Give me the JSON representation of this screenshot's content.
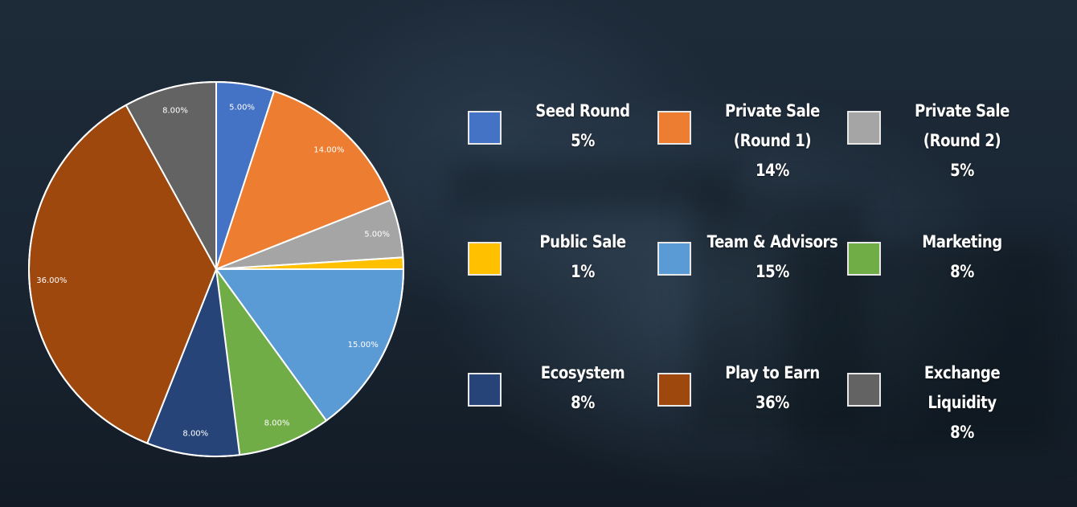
{
  "chart_data": {
    "type": "pie",
    "slices": [
      {
        "name": "Seed Round",
        "value": 5,
        "label": "5.00%",
        "color": "#4472C4"
      },
      {
        "name": "Private Sale (Round 1)",
        "value": 14,
        "label": "14.00%",
        "color": "#ED7D31"
      },
      {
        "name": "Private Sale (Round 2)",
        "value": 5,
        "label": "5.00%",
        "color": "#A5A5A5"
      },
      {
        "name": "Public Sale",
        "value": 1,
        "label": "",
        "color": "#FFC000"
      },
      {
        "name": "Team & Advisors",
        "value": 15,
        "label": "15.00%",
        "color": "#5B9BD5"
      },
      {
        "name": "Marketing",
        "value": 8,
        "label": "8.00%",
        "color": "#70AD47"
      },
      {
        "name": "Ecosystem",
        "value": 8,
        "label": "8.00%",
        "color": "#264478"
      },
      {
        "name": "Play to Earn",
        "value": 36,
        "label": "36.00%",
        "color": "#9E480E"
      },
      {
        "name": "Exchange Liquidity",
        "value": 8,
        "label": "8.00%",
        "color": "#636363"
      }
    ],
    "legend": [
      {
        "lines": [
          "Seed Round",
          "5%"
        ],
        "color": "#4472C4"
      },
      {
        "lines": [
          "Private Sale",
          "(Round 1)",
          "14%"
        ],
        "color": "#ED7D31"
      },
      {
        "lines": [
          "Private Sale",
          "(Round 2)",
          "5%"
        ],
        "color": "#A5A5A5"
      },
      {
        "lines": [
          "Public Sale",
          "1%"
        ],
        "color": "#FFC000"
      },
      {
        "lines": [
          "Team & Advisors",
          "15%"
        ],
        "color": "#5B9BD5"
      },
      {
        "lines": [
          "Marketing",
          "8%"
        ],
        "color": "#70AD47"
      },
      {
        "lines": [
          "Ecosystem",
          "8%"
        ],
        "color": "#264478"
      },
      {
        "lines": [
          "Play to Earn",
          "36%"
        ],
        "color": "#9E480E"
      },
      {
        "lines": [
          "Exchange Liquidity",
          "8%"
        ],
        "color": "#636363"
      }
    ],
    "legend_placement": "right"
  }
}
